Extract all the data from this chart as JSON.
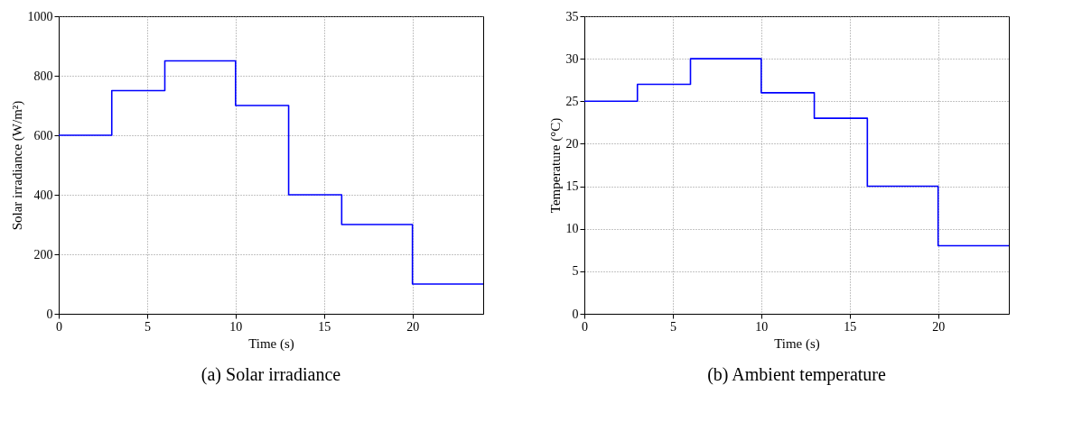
{
  "chart_data": [
    {
      "type": "step",
      "title": "(a)   Solar irradiance",
      "xlabel": "Time (s)",
      "ylabel": "Solar irradiance (W/m²)",
      "x": [
        0,
        3,
        6,
        10,
        13,
        16,
        20,
        24
      ],
      "series": [
        {
          "color": "#0000ff",
          "values": [
            600,
            750,
            850,
            700,
            400,
            300,
            100,
            100
          ]
        }
      ],
      "xlim": [
        0,
        24
      ],
      "xticks": [
        0,
        5,
        10,
        15,
        20
      ],
      "ylim": [
        0,
        1000
      ],
      "yticks": [
        0,
        200,
        400,
        600,
        800,
        1000
      ],
      "grid": true
    },
    {
      "type": "step",
      "title": "(b)         Ambient temperature",
      "xlabel": "Time (s)",
      "ylabel": "Temperature (°C)",
      "x": [
        0,
        3,
        6,
        10,
        13,
        16,
        20,
        24
      ],
      "series": [
        {
          "color": "#0000ff",
          "values": [
            25,
            27,
            30,
            26,
            23,
            15,
            8,
            8
          ]
        }
      ],
      "xlim": [
        0,
        24
      ],
      "xticks": [
        0,
        5,
        10,
        15,
        20
      ],
      "ylim": [
        0,
        35
      ],
      "yticks": [
        0,
        5,
        10,
        15,
        20,
        25,
        30,
        35
      ],
      "grid": true
    }
  ]
}
